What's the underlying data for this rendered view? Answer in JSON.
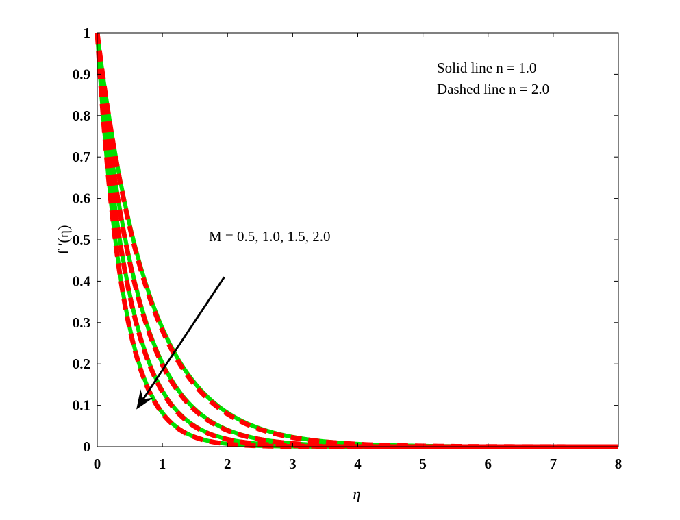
{
  "chart_data": {
    "type": "line",
    "xlabel": "η",
    "ylabel": "f '(η)",
    "xlim": [
      0,
      8
    ],
    "ylim": [
      0,
      1
    ],
    "x_ticks": [
      "0",
      "1",
      "2",
      "3",
      "4",
      "5",
      "6",
      "7",
      "8"
    ],
    "y_ticks": [
      "0",
      "0.1",
      "0.2",
      "0.3",
      "0.4",
      "0.5",
      "0.6",
      "0.7",
      "0.8",
      "0.9",
      "1"
    ],
    "grid": false,
    "legend_text": [
      "Solid line    n = 1.0",
      "Dashed line n = 2.0"
    ],
    "annotation": "M = 0.5, 1.0, 1.5, 2.0",
    "curve_model": "f'(η) = exp(-k·η)",
    "series": [
      {
        "style": "solid",
        "color": "#00e000",
        "k": 1.25,
        "x": [
          0,
          0.5,
          1,
          1.5,
          2,
          3,
          4,
          5,
          6,
          8
        ],
        "values": [
          1,
          0.535,
          0.287,
          0.153,
          0.082,
          0.023,
          0.007,
          0.002,
          0.001,
          0
        ]
      },
      {
        "style": "solid",
        "color": "#00e000",
        "k": 1.6,
        "x": [
          0,
          0.5,
          1,
          1.5,
          2,
          3,
          4,
          5,
          6,
          8
        ],
        "values": [
          1,
          0.449,
          0.202,
          0.091,
          0.041,
          0.008,
          0.002,
          0,
          0,
          0
        ]
      },
      {
        "style": "solid",
        "color": "#00e000",
        "k": 2.0,
        "x": [
          0,
          0.5,
          1,
          1.5,
          2,
          3,
          4,
          5,
          6,
          8
        ],
        "values": [
          1,
          0.368,
          0.135,
          0.05,
          0.018,
          0.002,
          0,
          0,
          0,
          0
        ]
      },
      {
        "style": "solid",
        "color": "#00e000",
        "k": 2.5,
        "x": [
          0,
          0.5,
          1,
          1.5,
          2,
          3,
          4,
          5,
          6,
          8
        ],
        "values": [
          1,
          0.287,
          0.082,
          0.024,
          0.007,
          0.001,
          0,
          0,
          0,
          0
        ]
      },
      {
        "style": "dashed",
        "color": "#ff0000",
        "k": 1.27,
        "x": [
          0,
          0.5,
          1,
          1.5,
          2,
          3,
          4,
          5,
          6,
          8
        ],
        "values": [
          1,
          0.53,
          0.281,
          0.149,
          0.079,
          0.022,
          0.006,
          0.002,
          0,
          0
        ]
      },
      {
        "style": "dashed",
        "color": "#ff0000",
        "k": 1.62,
        "x": [
          0,
          0.5,
          1,
          1.5,
          2,
          3,
          4,
          5,
          6,
          8
        ],
        "values": [
          1,
          0.445,
          0.198,
          0.088,
          0.039,
          0.008,
          0.002,
          0,
          0,
          0
        ]
      },
      {
        "style": "dashed",
        "color": "#ff0000",
        "k": 2.02,
        "x": [
          0,
          0.5,
          1,
          1.5,
          2,
          3,
          4,
          5,
          6,
          8
        ],
        "values": [
          1,
          0.364,
          0.133,
          0.048,
          0.018,
          0.002,
          0,
          0,
          0,
          0
        ]
      },
      {
        "style": "dashed",
        "color": "#ff0000",
        "k": 2.52,
        "x": [
          0,
          0.5,
          1,
          1.5,
          2,
          3,
          4,
          5,
          6,
          8
        ],
        "values": [
          1,
          0.284,
          0.08,
          0.023,
          0.006,
          0.001,
          0,
          0,
          0,
          0
        ]
      }
    ],
    "arrow": {
      "from": [
        1.95,
        0.41
      ],
      "to": [
        0.6,
        0.09
      ],
      "color": "#000000"
    }
  }
}
